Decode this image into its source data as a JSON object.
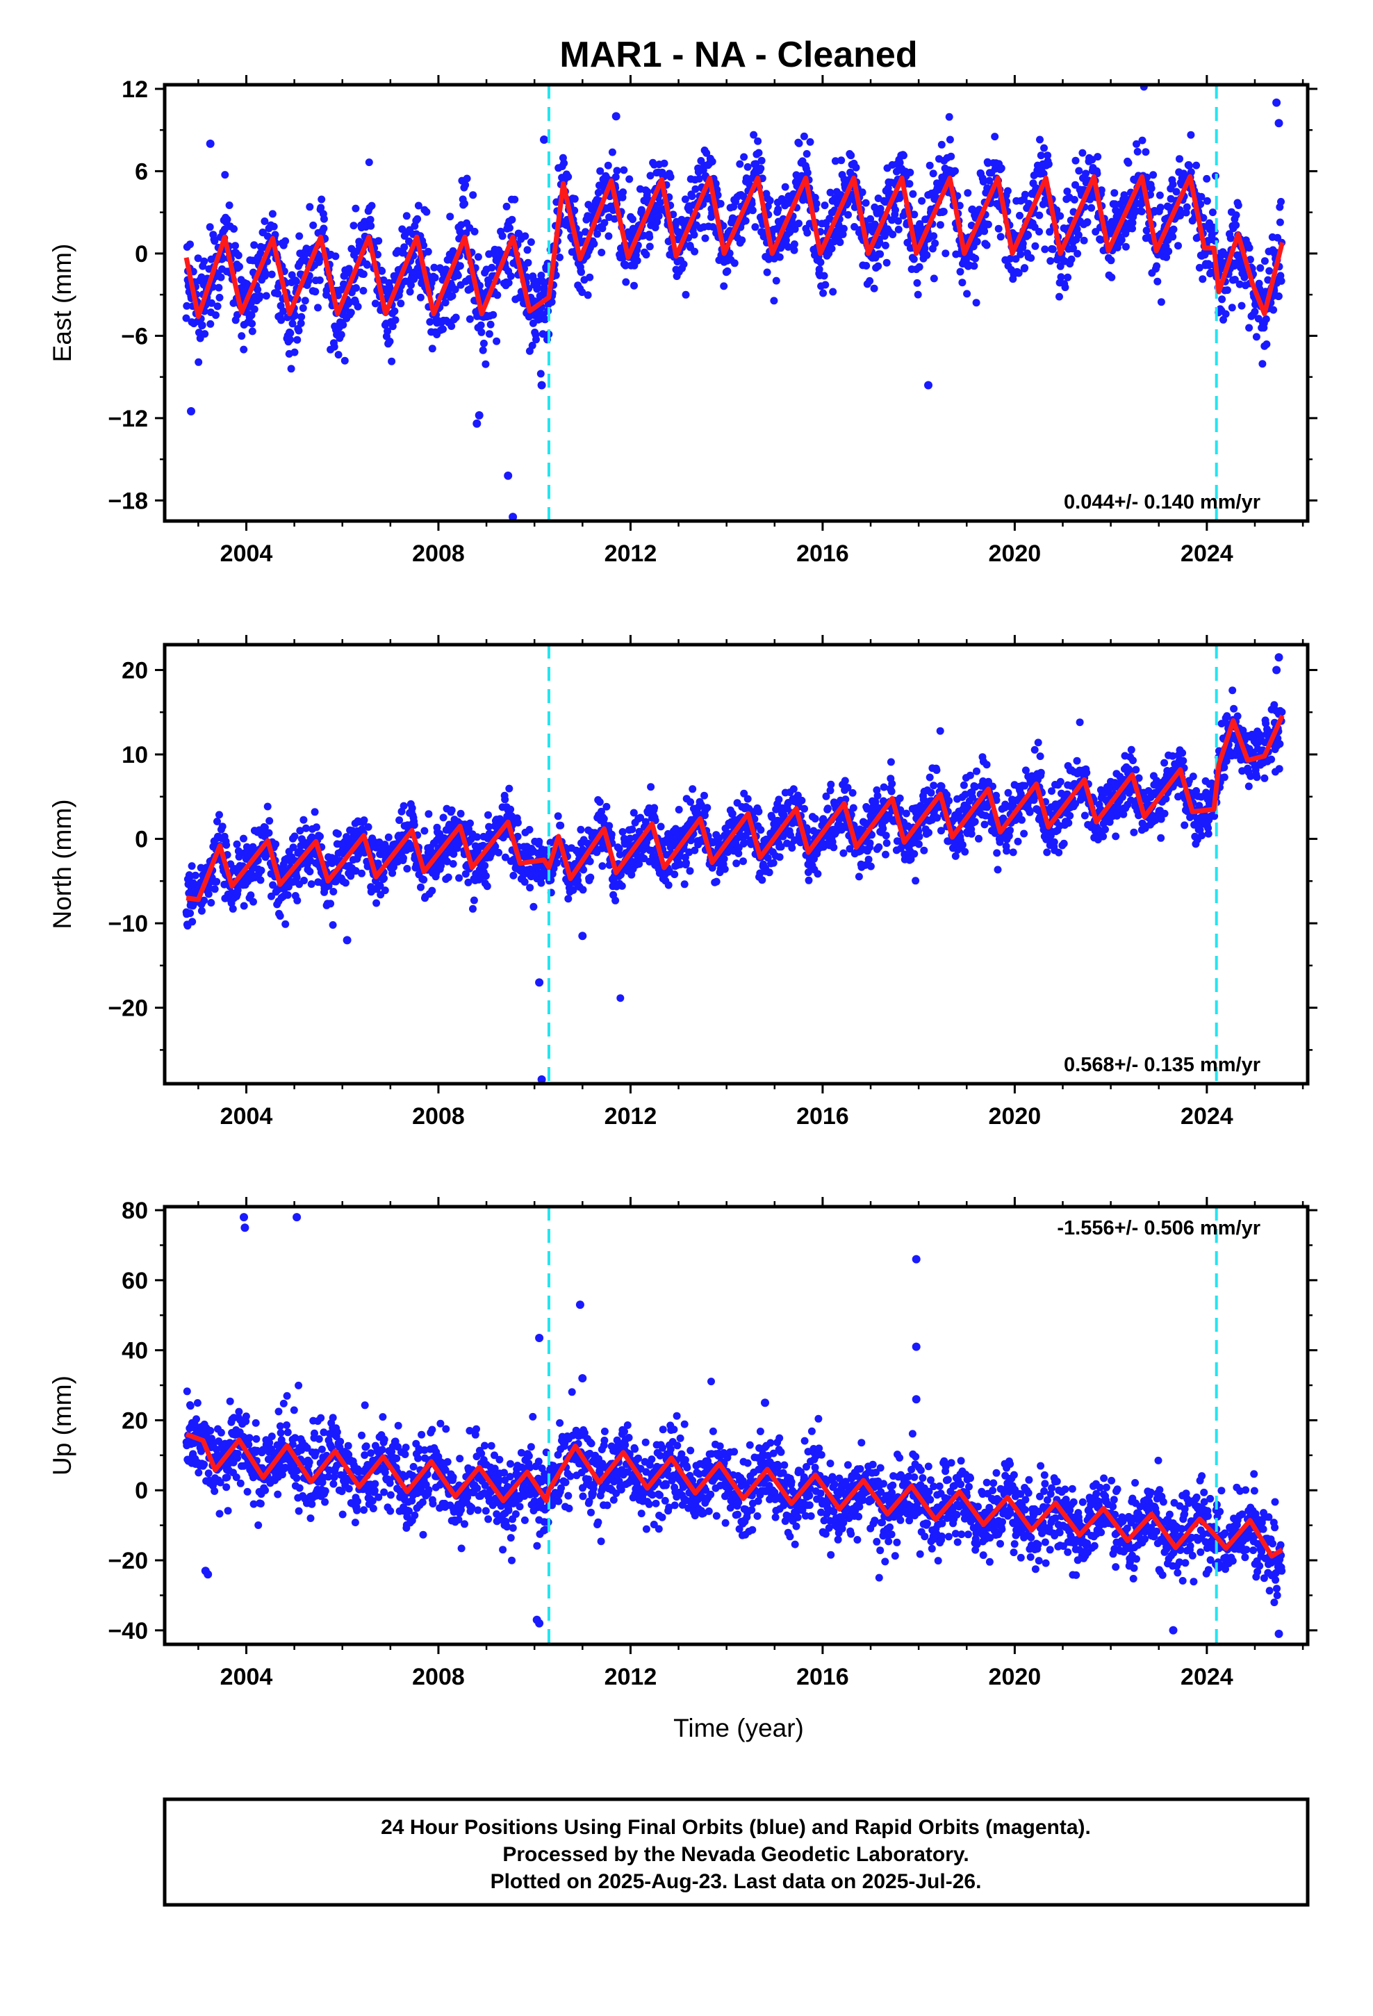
{
  "figure": {
    "title": "MAR1  - NA - Cleaned",
    "xlabel": "Time (year)",
    "footer": [
      "24 Hour Positions Using Final Orbits (blue) and Rapid Orbits (magenta).",
      "Processed by the Nevada Geodetic Laboratory.",
      "Plotted on 2025-Aug-23. Last data on 2025-Jul-26."
    ]
  },
  "colors": {
    "points": "#1a1aff",
    "fit": "#ff1a1a",
    "breaks": "#22e5f0",
    "frame": "#000000"
  },
  "chart_data": [
    {
      "type": "scatter",
      "name": "east",
      "ylabel": "East (mm)",
      "xlim": [
        2002.3,
        2026.1
      ],
      "ylim": [
        -19.5,
        12.3
      ],
      "xticks": [
        2004,
        2008,
        2012,
        2016,
        2020,
        2024
      ],
      "yticks": [
        12,
        6,
        0,
        -6,
        -12,
        -18
      ],
      "rate": "0.044+/- 0.140 mm/yr",
      "rate_position": "bottom-right",
      "breaks": [
        2010.3,
        2024.2
      ],
      "data_span": [
        2002.75,
        2025.57
      ],
      "offsets": [
        {
          "start": 2002.75,
          "end": 2010.3,
          "level": -1.7
        },
        {
          "start": 2010.3,
          "end": 2024.2,
          "level": 2.5
        },
        {
          "start": 2024.2,
          "end": 2025.57,
          "level": -1.3
        }
      ],
      "seasonal_amplitude": 2.9,
      "seasonal_phase_year": 0.62,
      "scatter_sd": 1.6,
      "outliers": [
        [
          2002.85,
          -11.5
        ],
        [
          2003.25,
          8.0
        ],
        [
          2008.8,
          -12.4
        ],
        [
          2008.85,
          -11.8
        ],
        [
          2009.45,
          -16.2
        ],
        [
          2009.55,
          -19.2
        ],
        [
          2010.15,
          -9.6
        ],
        [
          2010.2,
          8.3
        ],
        [
          2011.7,
          10.0
        ],
        [
          2018.2,
          -9.6
        ],
        [
          2025.45,
          11.0
        ],
        [
          2025.5,
          9.5
        ]
      ],
      "fit": [
        [
          2002.75,
          -0.3
        ],
        [
          2003.0,
          -4.6
        ],
        [
          2003.55,
          1.2
        ],
        [
          2003.9,
          -4.3
        ],
        [
          2004.55,
          1.1
        ],
        [
          2004.9,
          -4.4
        ],
        [
          2005.55,
          1.2
        ],
        [
          2005.9,
          -4.4
        ],
        [
          2006.55,
          1.2
        ],
        [
          2006.9,
          -4.4
        ],
        [
          2007.55,
          1.2
        ],
        [
          2007.9,
          -4.4
        ],
        [
          2008.55,
          1.2
        ],
        [
          2008.9,
          -4.4
        ],
        [
          2009.55,
          1.2
        ],
        [
          2009.9,
          -4.2
        ],
        [
          2010.3,
          -3.2
        ],
        [
          2010.6,
          5.1
        ],
        [
          2010.95,
          -0.4
        ],
        [
          2011.6,
          5.3
        ],
        [
          2011.95,
          -0.3
        ],
        [
          2012.65,
          5.4
        ],
        [
          2012.95,
          -0.2
        ],
        [
          2013.65,
          5.5
        ],
        [
          2013.95,
          0.0
        ],
        [
          2014.65,
          5.5
        ],
        [
          2014.95,
          0.0
        ],
        [
          2015.65,
          5.5
        ],
        [
          2015.95,
          0.0
        ],
        [
          2016.65,
          5.5
        ],
        [
          2016.95,
          0.0
        ],
        [
          2017.65,
          5.5
        ],
        [
          2017.95,
          0.0
        ],
        [
          2018.65,
          5.5
        ],
        [
          2018.95,
          0.0
        ],
        [
          2019.65,
          5.5
        ],
        [
          2019.95,
          0.0
        ],
        [
          2020.65,
          5.5
        ],
        [
          2020.95,
          0.0
        ],
        [
          2021.65,
          5.6
        ],
        [
          2021.95,
          0.2
        ],
        [
          2022.65,
          5.6
        ],
        [
          2022.95,
          0.2
        ],
        [
          2023.65,
          5.6
        ],
        [
          2023.95,
          0.4
        ],
        [
          2024.15,
          0.4
        ],
        [
          2024.25,
          -2.8
        ],
        [
          2024.65,
          1.4
        ],
        [
          2024.95,
          -2.2
        ],
        [
          2025.2,
          -4.4
        ],
        [
          2025.57,
          0.8
        ]
      ]
    },
    {
      "type": "scatter",
      "name": "north",
      "ylabel": "North (mm)",
      "xlim": [
        2002.3,
        2026.1
      ],
      "ylim": [
        -29.0,
        23.0
      ],
      "xticks": [
        2004,
        2008,
        2012,
        2016,
        2020,
        2024
      ],
      "yticks": [
        20,
        10,
        0,
        -10,
        -20
      ],
      "rate": "0.568+/- 0.135 mm/yr",
      "rate_position": "bottom-right",
      "breaks": [
        2010.3,
        2024.2
      ],
      "data_span": [
        2002.75,
        2025.57
      ],
      "offsets": [
        {
          "start": 2002.75,
          "end": 2010.3,
          "level": -5.0
        },
        {
          "start": 2010.3,
          "end": 2024.2,
          "level": 0.8
        },
        {
          "start": 2024.2,
          "end": 2025.57,
          "level": 10.0
        }
      ],
      "seasonal_amplitude": 2.6,
      "seasonal_phase_year": 0.45,
      "scatter_sd": 1.8,
      "outliers": [
        [
          2010.1,
          -17.0
        ],
        [
          2010.15,
          -28.5
        ],
        [
          2011.0,
          -11.5
        ],
        [
          2006.1,
          -12.0
        ],
        [
          2025.5,
          21.5
        ],
        [
          2025.45,
          20.0
        ]
      ],
      "fit": [
        [
          2002.75,
          -7.0
        ],
        [
          2003.0,
          -7.2
        ],
        [
          2003.45,
          -0.8
        ],
        [
          2003.7,
          -5.6
        ],
        [
          2004.45,
          -0.2
        ],
        [
          2004.7,
          -5.4
        ],
        [
          2005.45,
          -0.3
        ],
        [
          2005.7,
          -5.0
        ],
        [
          2006.45,
          0.4
        ],
        [
          2006.7,
          -4.5
        ],
        [
          2007.45,
          1.0
        ],
        [
          2007.7,
          -3.9
        ],
        [
          2008.45,
          1.5
        ],
        [
          2008.7,
          -3.4
        ],
        [
          2009.45,
          2.0
        ],
        [
          2009.7,
          -2.9
        ],
        [
          2010.2,
          -2.5
        ],
        [
          2010.3,
          -3.4
        ],
        [
          2010.5,
          0.3
        ],
        [
          2010.75,
          -4.7
        ],
        [
          2011.45,
          1.2
        ],
        [
          2011.7,
          -4.0
        ],
        [
          2012.45,
          1.8
        ],
        [
          2012.7,
          -3.4
        ],
        [
          2013.45,
          2.4
        ],
        [
          2013.7,
          -2.8
        ],
        [
          2014.45,
          3.0
        ],
        [
          2014.7,
          -2.2
        ],
        [
          2015.45,
          3.6
        ],
        [
          2015.7,
          -1.6
        ],
        [
          2016.45,
          4.2
        ],
        [
          2016.7,
          -1.0
        ],
        [
          2017.45,
          4.8
        ],
        [
          2017.7,
          -0.4
        ],
        [
          2018.45,
          5.3
        ],
        [
          2018.7,
          0.2
        ],
        [
          2019.45,
          5.9
        ],
        [
          2019.7,
          0.8
        ],
        [
          2020.45,
          6.5
        ],
        [
          2020.7,
          1.4
        ],
        [
          2021.45,
          7.0
        ],
        [
          2021.7,
          2.0
        ],
        [
          2022.45,
          7.6
        ],
        [
          2022.7,
          2.6
        ],
        [
          2023.45,
          8.2
        ],
        [
          2023.7,
          3.2
        ],
        [
          2024.15,
          3.5
        ],
        [
          2024.25,
          8.8
        ],
        [
          2024.55,
          14.0
        ],
        [
          2024.85,
          9.3
        ],
        [
          2025.2,
          9.8
        ],
        [
          2025.57,
          14.6
        ]
      ]
    },
    {
      "type": "scatter",
      "name": "up",
      "ylabel": "Up (mm)",
      "xlim": [
        2002.3,
        2026.1
      ],
      "ylim": [
        -44.0,
        81.0
      ],
      "xticks": [
        2004,
        2008,
        2012,
        2016,
        2020,
        2024
      ],
      "yticks": [
        80,
        60,
        40,
        20,
        0,
        -20,
        -40
      ],
      "rate": "-1.556+/- 0.506 mm/yr",
      "rate_position": "top-right",
      "breaks": [
        2010.3,
        2024.2
      ],
      "data_span": [
        2002.75,
        2025.57
      ],
      "offsets": [
        {
          "start": 2002.75,
          "end": 2010.3,
          "level": 5.0
        },
        {
          "start": 2010.3,
          "end": 2024.2,
          "level": -2.0
        },
        {
          "start": 2024.2,
          "end": 2025.57,
          "level": -13.0
        }
      ],
      "seasonal_amplitude": 5.0,
      "seasonal_phase_year": 0.62,
      "scatter_sd": 5.5,
      "outliers": [
        [
          2003.95,
          78.0
        ],
        [
          2003.97,
          75.0
        ],
        [
          2005.05,
          78.0
        ],
        [
          2010.1,
          43.5
        ],
        [
          2010.05,
          -37.0
        ],
        [
          2010.1,
          -38.0
        ],
        [
          2010.95,
          53.0
        ],
        [
          2011.0,
          32.0
        ],
        [
          2017.95,
          66.0
        ],
        [
          2017.95,
          41.0
        ],
        [
          2017.95,
          26.0
        ],
        [
          2003.15,
          -23.0
        ],
        [
          2003.2,
          -24.0
        ],
        [
          2023.3,
          -40.0
        ],
        [
          2025.5,
          -41.0
        ],
        [
          2014.8,
          25.0
        ]
      ],
      "fit": [
        [
          2002.75,
          16.0
        ],
        [
          2003.1,
          14.2
        ],
        [
          2003.35,
          5.8
        ],
        [
          2003.85,
          14.4
        ],
        [
          2004.35,
          3.6
        ],
        [
          2004.85,
          12.8
        ],
        [
          2005.35,
          2.4
        ],
        [
          2005.85,
          11.2
        ],
        [
          2006.35,
          1.0
        ],
        [
          2006.85,
          9.6
        ],
        [
          2007.35,
          -0.4
        ],
        [
          2007.85,
          8.2
        ],
        [
          2008.35,
          -1.8
        ],
        [
          2008.85,
          6.6
        ],
        [
          2009.35,
          -3.0
        ],
        [
          2009.85,
          5.2
        ],
        [
          2010.25,
          -3.0
        ],
        [
          2010.3,
          0.0
        ],
        [
          2010.85,
          12.6
        ],
        [
          2011.35,
          2.2
        ],
        [
          2011.85,
          10.8
        ],
        [
          2012.35,
          0.6
        ],
        [
          2012.85,
          9.2
        ],
        [
          2013.35,
          -0.8
        ],
        [
          2013.85,
          7.6
        ],
        [
          2014.35,
          -2.4
        ],
        [
          2014.85,
          6.0
        ],
        [
          2015.35,
          -3.8
        ],
        [
          2015.85,
          4.4
        ],
        [
          2016.35,
          -5.4
        ],
        [
          2016.85,
          2.8
        ],
        [
          2017.35,
          -6.8
        ],
        [
          2017.85,
          1.2
        ],
        [
          2018.35,
          -8.4
        ],
        [
          2018.85,
          -0.4
        ],
        [
          2019.35,
          -9.8
        ],
        [
          2019.85,
          -2.0
        ],
        [
          2020.35,
          -11.4
        ],
        [
          2020.85,
          -3.6
        ],
        [
          2021.35,
          -12.8
        ],
        [
          2021.85,
          -5.2
        ],
        [
          2022.35,
          -14.4
        ],
        [
          2022.85,
          -6.8
        ],
        [
          2023.35,
          -16.4
        ],
        [
          2023.85,
          -8.2
        ],
        [
          2024.15,
          -12.5
        ],
        [
          2024.4,
          -16.6
        ],
        [
          2024.9,
          -8.6
        ],
        [
          2025.35,
          -18.8
        ],
        [
          2025.57,
          -17.0
        ]
      ]
    }
  ]
}
